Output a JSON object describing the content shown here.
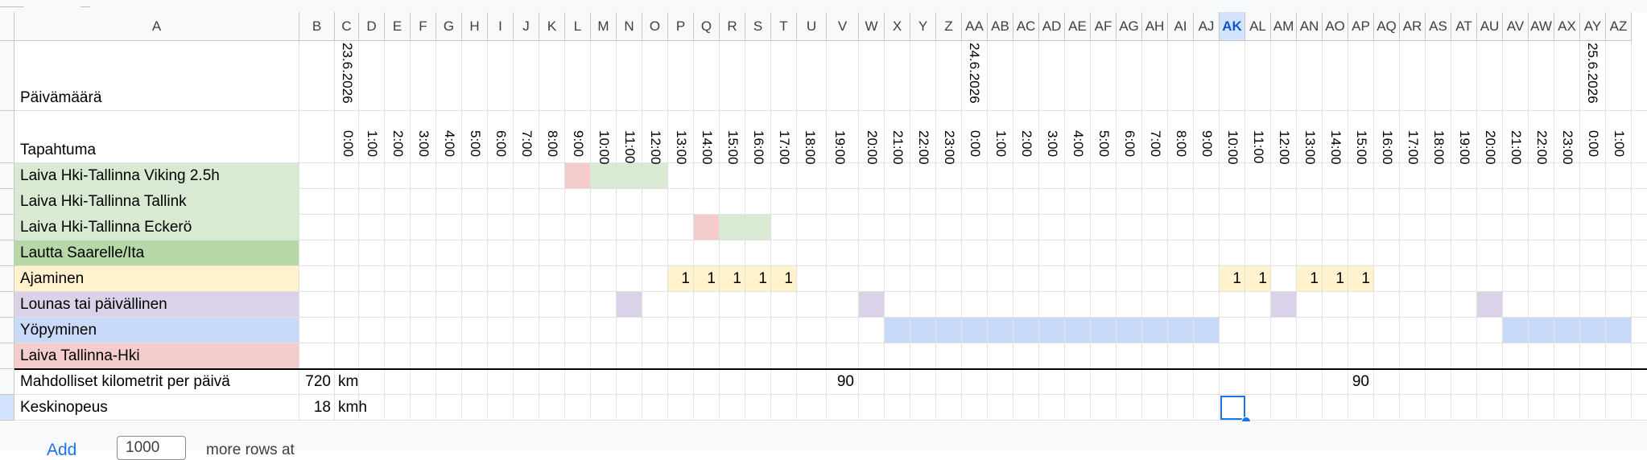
{
  "sheet": {
    "columns": [
      "A",
      "B",
      "C",
      "D",
      "E",
      "F",
      "G",
      "H",
      "I",
      "J",
      "K",
      "L",
      "M",
      "N",
      "O",
      "P",
      "Q",
      "R",
      "S",
      "T",
      "U",
      "V",
      "W",
      "X",
      "Y",
      "Z",
      "AA",
      "AB",
      "AC",
      "AD",
      "AE",
      "AF",
      "AG",
      "AH",
      "AI",
      "AJ",
      "AK",
      "AL",
      "AM",
      "AN",
      "AO",
      "AP",
      "AQ",
      "AR",
      "AS",
      "AT",
      "AU",
      "AV",
      "AW",
      "AX",
      "AY",
      "AZ"
    ],
    "selected_column": "AK",
    "selected_cell": "AK16",
    "header_label_date": "Päivämäärä",
    "header_label_event": "Tapahtuma",
    "dates": [
      {
        "col": "C",
        "text": "23.6.2026"
      },
      {
        "col": "AA",
        "text": "24.6.2026"
      },
      {
        "col": "AY",
        "text": "25.6.2026"
      }
    ],
    "times": [
      {
        "col": "C",
        "text": "0:00"
      },
      {
        "col": "D",
        "text": "1:00"
      },
      {
        "col": "E",
        "text": "2:00"
      },
      {
        "col": "F",
        "text": "3:00"
      },
      {
        "col": "G",
        "text": "4:00"
      },
      {
        "col": "H",
        "text": "5:00"
      },
      {
        "col": "I",
        "text": "6:00"
      },
      {
        "col": "J",
        "text": "7:00"
      },
      {
        "col": "K",
        "text": "8:00"
      },
      {
        "col": "L",
        "text": "9:00"
      },
      {
        "col": "M",
        "text": "10:00"
      },
      {
        "col": "N",
        "text": "11:00"
      },
      {
        "col": "O",
        "text": "12:00"
      },
      {
        "col": "P",
        "text": "13:00"
      },
      {
        "col": "Q",
        "text": "14:00"
      },
      {
        "col": "R",
        "text": "15:00"
      },
      {
        "col": "S",
        "text": "16:00"
      },
      {
        "col": "T",
        "text": "17:00"
      },
      {
        "col": "U",
        "text": "18:00"
      },
      {
        "col": "V",
        "text": "19:00"
      },
      {
        "col": "W",
        "text": "20:00"
      },
      {
        "col": "X",
        "text": "21:00"
      },
      {
        "col": "Y",
        "text": "22:00"
      },
      {
        "col": "Z",
        "text": "23:00"
      },
      {
        "col": "AA",
        "text": "0:00"
      },
      {
        "col": "AB",
        "text": "1:00"
      },
      {
        "col": "AC",
        "text": "2:00"
      },
      {
        "col": "AD",
        "text": "3:00"
      },
      {
        "col": "AE",
        "text": "4:00"
      },
      {
        "col": "AF",
        "text": "5:00"
      },
      {
        "col": "AG",
        "text": "6:00"
      },
      {
        "col": "AH",
        "text": "7:00"
      },
      {
        "col": "AI",
        "text": "8:00"
      },
      {
        "col": "AJ",
        "text": "9:00"
      },
      {
        "col": "AK",
        "text": "10:00"
      },
      {
        "col": "AL",
        "text": "11:00"
      },
      {
        "col": "AM",
        "text": "12:00"
      },
      {
        "col": "AN",
        "text": "13:00"
      },
      {
        "col": "AO",
        "text": "14:00"
      },
      {
        "col": "AP",
        "text": "15:00"
      },
      {
        "col": "AQ",
        "text": "16:00"
      },
      {
        "col": "AR",
        "text": "17:00"
      },
      {
        "col": "AS",
        "text": "18:00"
      },
      {
        "col": "AT",
        "text": "19:00"
      },
      {
        "col": "AU",
        "text": "20:00"
      },
      {
        "col": "AV",
        "text": "21:00"
      },
      {
        "col": "AW",
        "text": "22:00"
      },
      {
        "col": "AX",
        "text": "23:00"
      },
      {
        "col": "AY",
        "text": "0:00"
      },
      {
        "col": "AZ",
        "text": "1:00"
      }
    ],
    "events": [
      {
        "label": "Laiva Hki-Tallinna Viking 2.5h",
        "color": "#d9ead3",
        "fills": [
          {
            "col": "L",
            "color": "#f4cccc"
          },
          {
            "col": "M",
            "color": "#d9ead3"
          },
          {
            "col": "N",
            "color": "#d9ead3"
          },
          {
            "col": "O",
            "color": "#d9ead3"
          }
        ]
      },
      {
        "label": "Laiva Hki-Tallinna Tallink",
        "color": "#d9ead3",
        "fills": []
      },
      {
        "label": "Laiva Hki-Tallinna Eckerö",
        "color": "#d9ead3",
        "fills": [
          {
            "col": "Q",
            "color": "#f4cccc"
          },
          {
            "col": "R",
            "color": "#d9ead3"
          },
          {
            "col": "S",
            "color": "#d9ead3"
          }
        ]
      },
      {
        "label": "Lautta Saarelle/Ita",
        "color": "#b6d7a8",
        "fills": []
      },
      {
        "label": "Ajaminen",
        "color": "#fff2cc",
        "fills": [
          {
            "col": "P",
            "color": "#fff2cc",
            "value": "1"
          },
          {
            "col": "Q",
            "color": "#fff2cc",
            "value": "1"
          },
          {
            "col": "R",
            "color": "#fff2cc",
            "value": "1"
          },
          {
            "col": "S",
            "color": "#fff2cc",
            "value": "1"
          },
          {
            "col": "T",
            "color": "#fff2cc",
            "value": "1"
          },
          {
            "col": "AK",
            "color": "#fff2cc",
            "value": "1"
          },
          {
            "col": "AL",
            "color": "#fff2cc",
            "value": "1"
          },
          {
            "col": "AN",
            "color": "#fff2cc",
            "value": "1"
          },
          {
            "col": "AO",
            "color": "#fff2cc",
            "value": "1"
          },
          {
            "col": "AP",
            "color": "#fff2cc",
            "value": "1"
          }
        ]
      },
      {
        "label": "Lounas tai päivällinen",
        "color": "#d9d2e9",
        "fills": [
          {
            "col": "N",
            "color": "#d9d2e9"
          },
          {
            "col": "W",
            "color": "#d9d2e9"
          },
          {
            "col": "AM",
            "color": "#d9d2e9"
          },
          {
            "col": "AU",
            "color": "#d9d2e9"
          }
        ]
      },
      {
        "label": "Yöpyminen",
        "color": "#c9daf8",
        "fills": [
          {
            "col": "X",
            "color": "#c9daf8"
          },
          {
            "col": "Y",
            "color": "#c9daf8"
          },
          {
            "col": "Z",
            "color": "#c9daf8"
          },
          {
            "col": "AA",
            "color": "#c9daf8"
          },
          {
            "col": "AB",
            "color": "#c9daf8"
          },
          {
            "col": "AC",
            "color": "#c9daf8"
          },
          {
            "col": "AD",
            "color": "#c9daf8"
          },
          {
            "col": "AE",
            "color": "#c9daf8"
          },
          {
            "col": "AF",
            "color": "#c9daf8"
          },
          {
            "col": "AG",
            "color": "#c9daf8"
          },
          {
            "col": "AH",
            "color": "#c9daf8"
          },
          {
            "col": "AI",
            "color": "#c9daf8"
          },
          {
            "col": "AJ",
            "color": "#c9daf8"
          },
          {
            "col": "AV",
            "color": "#c9daf8"
          },
          {
            "col": "AW",
            "color": "#c9daf8"
          },
          {
            "col": "AX",
            "color": "#c9daf8"
          },
          {
            "col": "AY",
            "color": "#c9daf8"
          },
          {
            "col": "AZ",
            "color": "#c9daf8"
          }
        ]
      },
      {
        "label": "Laiva Tallinna-Hki",
        "color": "#f4cccc",
        "fills": []
      }
    ],
    "summary": [
      {
        "label": "Mahdolliset kilometrit per päivä",
        "value": "720",
        "unit": "km",
        "extra": [
          {
            "col": "V",
            "value": "90"
          },
          {
            "col": "AP",
            "value": "90"
          }
        ]
      },
      {
        "label": "Keskinopeus",
        "value": "18",
        "unit": "kmh",
        "extra": []
      }
    ]
  },
  "footer": {
    "add_label": "Add",
    "rows_value": "1000",
    "more_rows_label": "more rows at"
  }
}
